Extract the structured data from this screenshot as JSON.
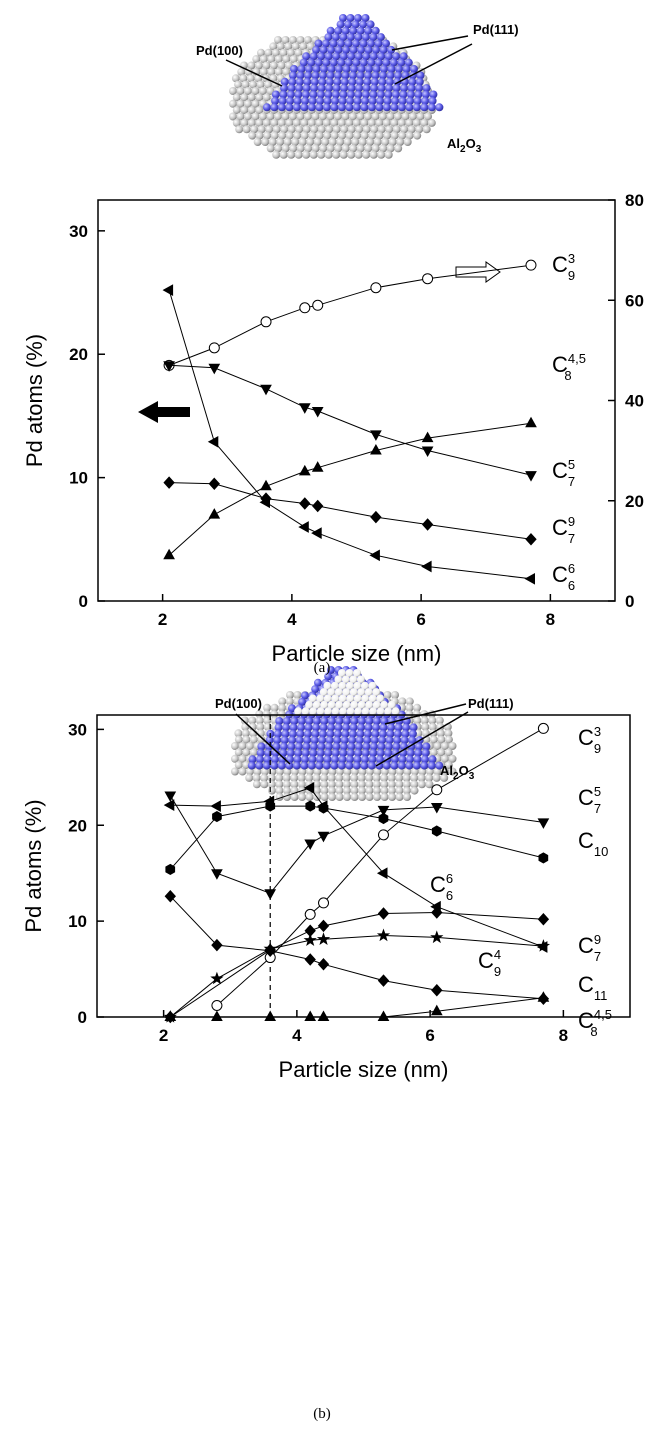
{
  "figure_a": {
    "facet_labels": [
      "Pd(100)",
      "Pd(111)"
    ],
    "support_label": [
      "Al",
      "2",
      "O",
      "3"
    ],
    "caption": "(a)"
  },
  "figure_b": {
    "facet_labels": [
      "Pd(100)",
      "Pd(111)"
    ],
    "support_label": [
      "Al",
      "2",
      "O",
      "3"
    ],
    "caption": "(b)"
  },
  "chart_data": [
    {
      "type": "line",
      "x_label": "Particle size (nm)",
      "y_label": "Pd atoms (%)",
      "x": [
        2.1,
        2.8,
        3.6,
        4.2,
        4.4,
        5.3,
        6.1,
        7.7
      ],
      "xlim": [
        1,
        9
      ],
      "xticks": [
        2,
        4,
        6,
        8
      ],
      "ylim": [
        0,
        32.5
      ],
      "yticks": [
        0,
        10,
        20,
        30
      ],
      "y2lim": [
        0,
        80
      ],
      "y2ticks": [
        0,
        20,
        40,
        60,
        80
      ],
      "series": [
        {
          "name": "C",
          "superscript": "3",
          "subscript": "9",
          "axis": "y2",
          "marker": "circle-open",
          "color": "#000000",
          "values": [
            47,
            50.5,
            55.7,
            58.5,
            59,
            62.5,
            64.3,
            67
          ]
        },
        {
          "name": "C",
          "superscript": "4,5",
          "subscript": "8",
          "marker": "triangle-up",
          "color": "#000000",
          "values": [
            3.7,
            7.0,
            9.3,
            10.5,
            10.8,
            12.2,
            13.2,
            14.4
          ]
        },
        {
          "name": "C",
          "superscript": "5",
          "subscript": "7",
          "marker": "triangle-down",
          "color": "#000000",
          "values": [
            19.1,
            18.9,
            17.2,
            15.7,
            15.4,
            13.5,
            12.2,
            10.2
          ]
        },
        {
          "name": "C",
          "superscript": "9",
          "subscript": "7",
          "marker": "diamond",
          "color": "#000000",
          "values": [
            9.6,
            9.5,
            8.3,
            7.9,
            7.7,
            6.8,
            6.2,
            5.0
          ]
        },
        {
          "name": "C",
          "superscript": "6",
          "subscript": "6",
          "marker": "triangle-left",
          "color": "#000000",
          "values": [
            25.2,
            12.9,
            8.0,
            6.0,
            5.5,
            3.7,
            2.8,
            1.8
          ]
        }
      ]
    },
    {
      "type": "line",
      "x_label": "Particle size (nm)",
      "y_label": "Pd atoms (%)",
      "x": [
        2.1,
        2.8,
        3.6,
        4.2,
        4.4,
        5.3,
        6.1,
        7.7
      ],
      "xlim": [
        1,
        9
      ],
      "xticks": [
        2,
        4,
        6,
        8
      ],
      "ylim": [
        0,
        31.5
      ],
      "yticks": [
        0,
        10,
        20,
        30
      ],
      "vline": 3.6,
      "series": [
        {
          "name": "C",
          "superscript": "3",
          "subscript": "9",
          "marker": "circle-open",
          "color": "#000000",
          "values": [
            null,
            1.2,
            6.2,
            10.7,
            11.9,
            19.0,
            23.7,
            30.1
          ]
        },
        {
          "name": "C",
          "superscript": "5",
          "subscript": "7",
          "marker": "triangle-down",
          "color": "#000000",
          "values": [
            23.1,
            15.0,
            12.9,
            18.1,
            18.9,
            21.6,
            21.9,
            20.3
          ]
        },
        {
          "name": "C",
          "subscript": "10",
          "marker": "hexagon",
          "color": "#000000",
          "values": [
            15.4,
            20.9,
            22.0,
            22.0,
            21.8,
            20.7,
            19.4,
            16.6
          ]
        },
        {
          "name": "C",
          "superscript": "6",
          "subscript": "6",
          "marker": "triangle-left",
          "color": "#000000",
          "values": [
            22.1,
            22.0,
            22.5,
            23.9,
            22.0,
            15.0,
            11.5,
            7.3
          ]
        },
        {
          "name": "C",
          "superscript": "9",
          "subscript": "7",
          "marker": "diamond",
          "color": "#000000",
          "x": [
            2.1,
            3.6,
            4.2,
            4.4,
            5.3,
            6.1,
            7.7
          ],
          "values": [
            0,
            7.0,
            9.0,
            9.5,
            10.8,
            10.9,
            10.2
          ]
        },
        {
          "name": "C",
          "subscript": "11",
          "marker": "star",
          "color": "#000000",
          "values": [
            0,
            4.0,
            7.1,
            8.0,
            8.1,
            8.5,
            8.3,
            7.4
          ]
        },
        {
          "name": "C",
          "superscript": "4",
          "subscript": "9",
          "marker": "diamond",
          "color": "#000000",
          "values": [
            12.6,
            7.5,
            6.9,
            6.0,
            5.5,
            3.8,
            2.8,
            1.9
          ]
        },
        {
          "name": "C",
          "superscript": "4,5",
          "subscript": "8",
          "marker": "triangle-up",
          "color": "#000000",
          "values": [
            0,
            0,
            0,
            0,
            0,
            0,
            0.6,
            2.0
          ]
        }
      ]
    }
  ]
}
